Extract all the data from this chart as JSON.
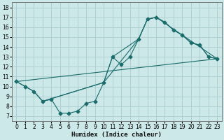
{
  "xlabel": "Humidex (Indice chaleur)",
  "bg_color": "#cce8e8",
  "grid_color": "#aacccc",
  "line_color": "#1a6b6b",
  "xlim": [
    -0.5,
    23.5
  ],
  "ylim": [
    6.5,
    18.5
  ],
  "xticks": [
    0,
    1,
    2,
    3,
    4,
    5,
    6,
    7,
    8,
    9,
    10,
    11,
    12,
    13,
    14,
    15,
    16,
    17,
    18,
    19,
    20,
    21,
    22,
    23
  ],
  "yticks": [
    7,
    8,
    9,
    10,
    11,
    12,
    13,
    14,
    15,
    16,
    17,
    18
  ],
  "line1_x": [
    0,
    1,
    2,
    3,
    4,
    5,
    6,
    7,
    8,
    9,
    10,
    11,
    12,
    13,
    14,
    15,
    16,
    17,
    18,
    19,
    20,
    21,
    22,
    23
  ],
  "line1_y": [
    10.5,
    10.0,
    9.5,
    8.5,
    8.7,
    7.3,
    7.3,
    7.5,
    8.3,
    8.5,
    10.4,
    13.0,
    12.2,
    13.0,
    14.8,
    16.8,
    17.0,
    16.5,
    15.7,
    15.2,
    14.4,
    14.2,
    13.0,
    12.8
  ],
  "line2_x": [
    0,
    2,
    3,
    10,
    11,
    14,
    15,
    16,
    17,
    18,
    19,
    20,
    21,
    22,
    23
  ],
  "line2_y": [
    10.5,
    9.5,
    8.5,
    10.4,
    13.0,
    14.8,
    16.8,
    17.0,
    16.5,
    15.7,
    15.2,
    14.4,
    14.2,
    13.0,
    12.8
  ],
  "line3_x": [
    0,
    23
  ],
  "line3_y": [
    10.5,
    12.8
  ],
  "line4_x": [
    3,
    10,
    14,
    15,
    16,
    23
  ],
  "line4_y": [
    8.5,
    10.4,
    14.8,
    16.8,
    17.0,
    12.8
  ]
}
